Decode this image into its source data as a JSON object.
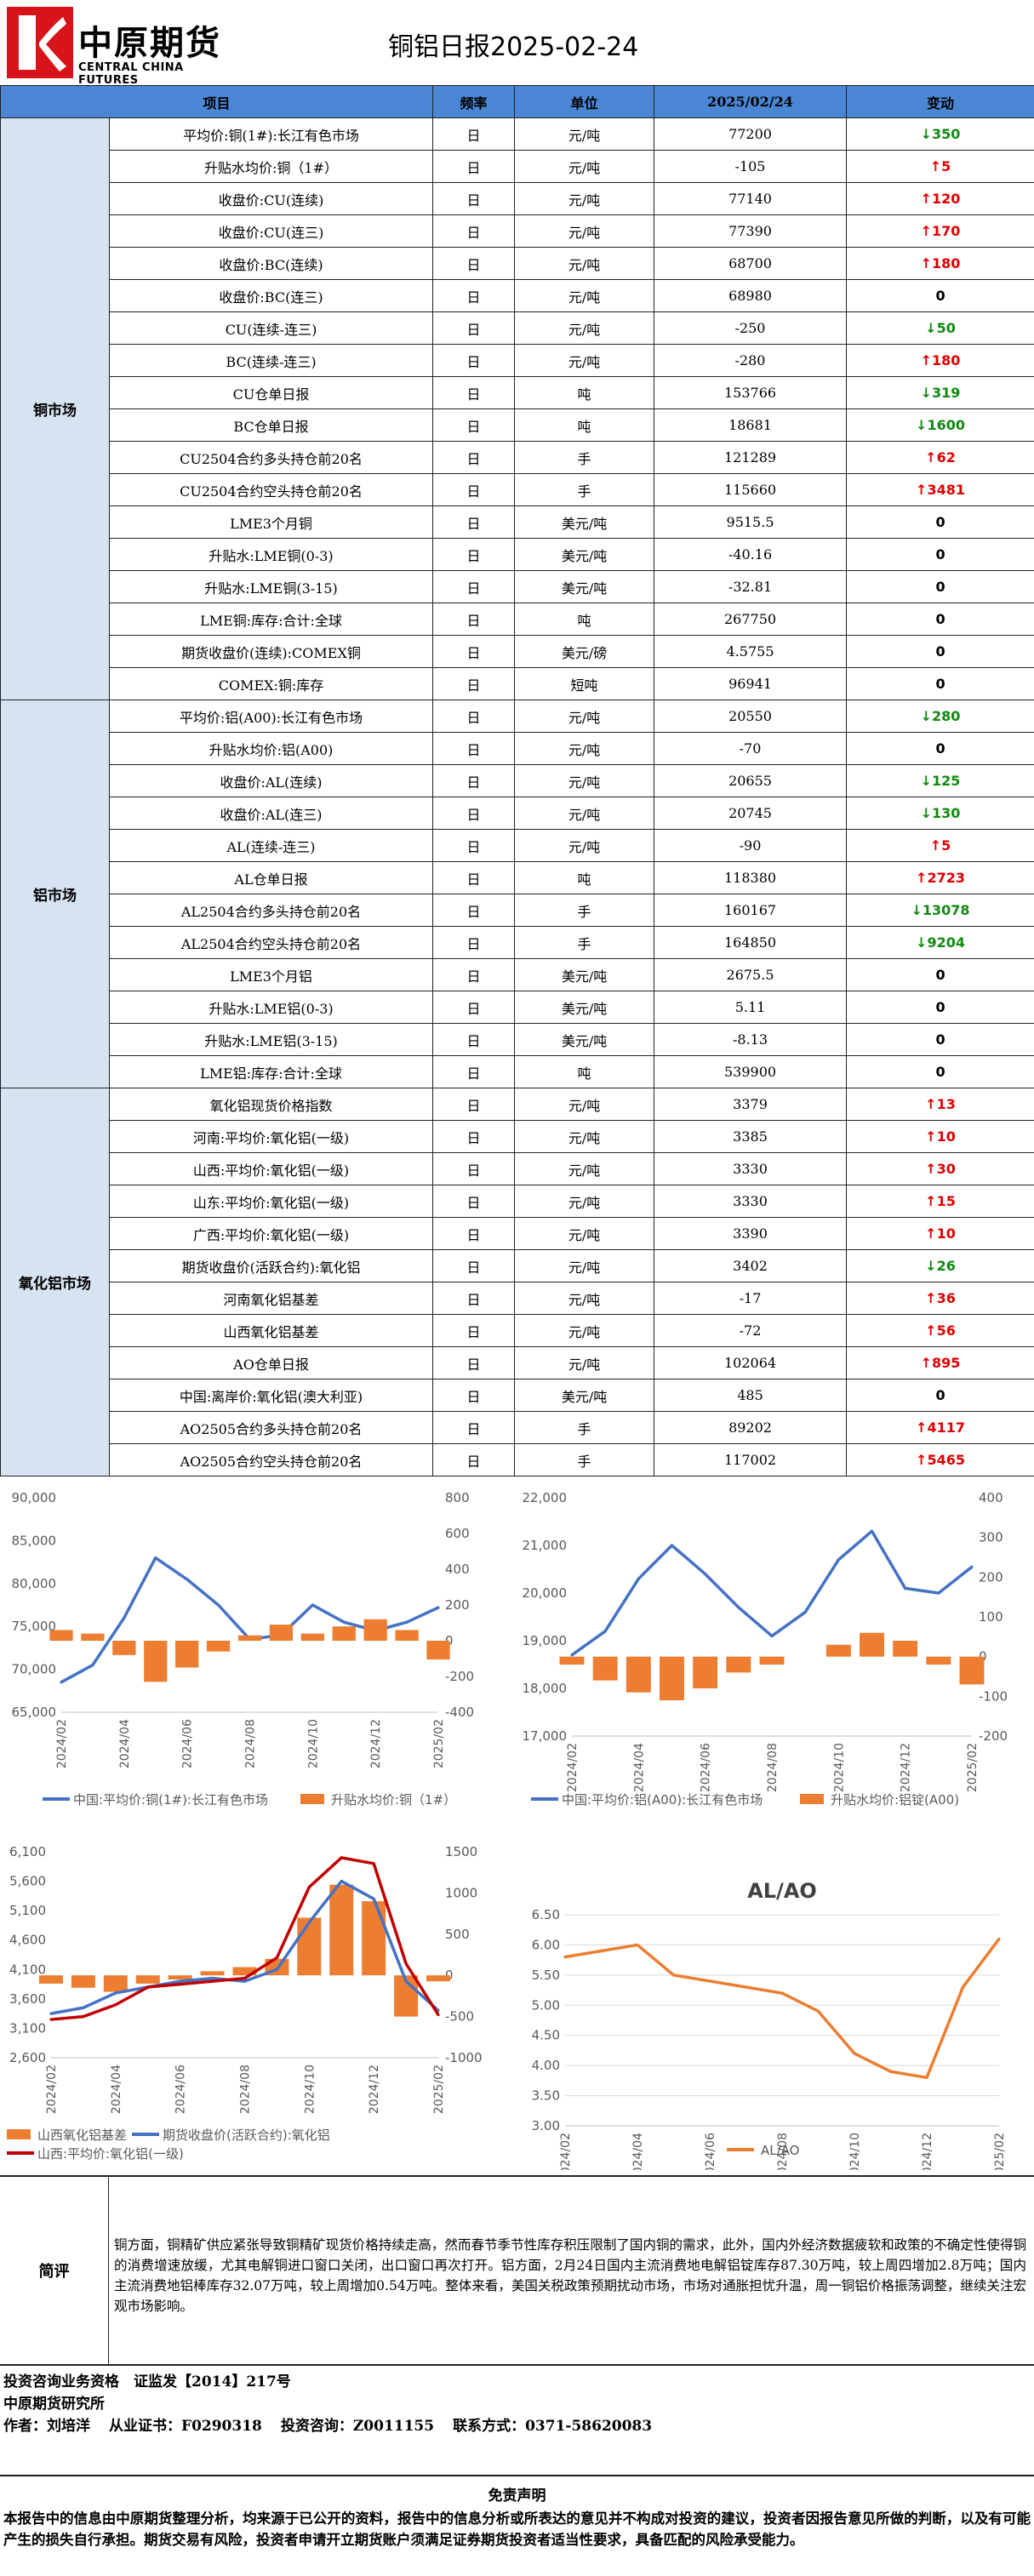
{
  "header": {
    "logo_cn": "中原期货",
    "logo_en": "CENTRAL CHINA FUTURES",
    "title": "铜铝日报2025-02-24"
  },
  "table": {
    "columns": [
      "项目",
      "频率",
      "单位",
      "2025/02/24",
      "变动"
    ],
    "groups": [
      {
        "name": "铜市场",
        "rows": [
          {
            "item": "平均价:铜(1#):长江有色市场",
            "freq": "日",
            "unit": "元/吨",
            "value": "77200",
            "change": "350",
            "dir": "down"
          },
          {
            "item": "升贴水均价:铜（1#）",
            "freq": "日",
            "unit": "元/吨",
            "value": "-105",
            "change": "5",
            "dir": "up"
          },
          {
            "item": "收盘价:CU(连续)",
            "freq": "日",
            "unit": "元/吨",
            "value": "77140",
            "change": "120",
            "dir": "up"
          },
          {
            "item": "收盘价:CU(连三)",
            "freq": "日",
            "unit": "元/吨",
            "value": "77390",
            "change": "170",
            "dir": "up"
          },
          {
            "item": "收盘价:BC(连续)",
            "freq": "日",
            "unit": "元/吨",
            "value": "68700",
            "change": "180",
            "dir": "up"
          },
          {
            "item": "收盘价:BC(连三)",
            "freq": "日",
            "unit": "元/吨",
            "value": "68980",
            "change": "0",
            "dir": "flat"
          },
          {
            "item": "CU(连续-连三)",
            "freq": "日",
            "unit": "元/吨",
            "value": "-250",
            "change": "50",
            "dir": "down"
          },
          {
            "item": "BC(连续-连三)",
            "freq": "日",
            "unit": "元/吨",
            "value": "-280",
            "change": "180",
            "dir": "up"
          },
          {
            "item": "CU仓单日报",
            "freq": "日",
            "unit": "吨",
            "value": "153766",
            "change": "319",
            "dir": "down"
          },
          {
            "item": "BC仓单日报",
            "freq": "日",
            "unit": "吨",
            "value": "18681",
            "change": "1600",
            "dir": "down"
          },
          {
            "item": "CU2504合约多头持仓前20名",
            "freq": "日",
            "unit": "手",
            "value": "121289",
            "change": "62",
            "dir": "up"
          },
          {
            "item": "CU2504合约空头持仓前20名",
            "freq": "日",
            "unit": "手",
            "value": "115660",
            "change": "3481",
            "dir": "up"
          },
          {
            "item": "LME3个月铜",
            "freq": "日",
            "unit": "美元/吨",
            "value": "9515.5",
            "change": "0",
            "dir": "flat"
          },
          {
            "item": "升贴水:LME铜(0-3)",
            "freq": "日",
            "unit": "美元/吨",
            "value": "-40.16",
            "change": "0",
            "dir": "flat"
          },
          {
            "item": "升贴水:LME铜(3-15)",
            "freq": "日",
            "unit": "美元/吨",
            "value": "-32.81",
            "change": "0",
            "dir": "flat"
          },
          {
            "item": "LME铜:库存:合计:全球",
            "freq": "日",
            "unit": "吨",
            "value": "267750",
            "change": "0",
            "dir": "flat"
          },
          {
            "item": "期货收盘价(连续):COMEX铜",
            "freq": "日",
            "unit": "美元/磅",
            "value": "4.5755",
            "change": "0",
            "dir": "flat"
          },
          {
            "item": "COMEX:铜:库存",
            "freq": "日",
            "unit": "短吨",
            "value": "96941",
            "change": "0",
            "dir": "flat"
          }
        ]
      },
      {
        "name": "铝市场",
        "rows": [
          {
            "item": "平均价:铝(A00):长江有色市场",
            "freq": "日",
            "unit": "元/吨",
            "value": "20550",
            "change": "280",
            "dir": "down"
          },
          {
            "item": "升贴水均价:铝(A00)",
            "freq": "日",
            "unit": "元/吨",
            "value": "-70",
            "change": "0",
            "dir": "flat"
          },
          {
            "item": "收盘价:AL(连续)",
            "freq": "日",
            "unit": "元/吨",
            "value": "20655",
            "change": "125",
            "dir": "down"
          },
          {
            "item": "收盘价:AL(连三)",
            "freq": "日",
            "unit": "元/吨",
            "value": "20745",
            "change": "130",
            "dir": "down"
          },
          {
            "item": "AL(连续-连三)",
            "freq": "日",
            "unit": "元/吨",
            "value": "-90",
            "change": "5",
            "dir": "up"
          },
          {
            "item": "AL仓单日报",
            "freq": "日",
            "unit": "吨",
            "value": "118380",
            "change": "2723",
            "dir": "up"
          },
          {
            "item": "AL2504合约多头持仓前20名",
            "freq": "日",
            "unit": "手",
            "value": "160167",
            "change": "13078",
            "dir": "down"
          },
          {
            "item": "AL2504合约空头持仓前20名",
            "freq": "日",
            "unit": "手",
            "value": "164850",
            "change": "9204",
            "dir": "down"
          },
          {
            "item": "LME3个月铝",
            "freq": "日",
            "unit": "美元/吨",
            "value": "2675.5",
            "change": "0",
            "dir": "flat"
          },
          {
            "item": "升贴水:LME铝(0-3)",
            "freq": "日",
            "unit": "美元/吨",
            "value": "5.11",
            "change": "0",
            "dir": "flat"
          },
          {
            "item": "升贴水:LME铝(3-15)",
            "freq": "日",
            "unit": "美元/吨",
            "value": "-8.13",
            "change": "0",
            "dir": "flat"
          },
          {
            "item": "LME铝:库存:合计:全球",
            "freq": "日",
            "unit": "吨",
            "value": "539900",
            "change": "0",
            "dir": "flat"
          }
        ]
      },
      {
        "name": "氧化铝市场",
        "rows": [
          {
            "item": "氧化铝现货价格指数",
            "freq": "日",
            "unit": "元/吨",
            "value": "3379",
            "change": "13",
            "dir": "up"
          },
          {
            "item": "河南:平均价:氧化铝(一级)",
            "freq": "日",
            "unit": "元/吨",
            "value": "3385",
            "change": "10",
            "dir": "up"
          },
          {
            "item": "山西:平均价:氧化铝(一级)",
            "freq": "日",
            "unit": "元/吨",
            "value": "3330",
            "change": "30",
            "dir": "up"
          },
          {
            "item": "山东:平均价:氧化铝(一级)",
            "freq": "日",
            "unit": "元/吨",
            "value": "3330",
            "change": "15",
            "dir": "up"
          },
          {
            "item": "广西:平均价:氧化铝(一级)",
            "freq": "日",
            "unit": "元/吨",
            "value": "3390",
            "change": "10",
            "dir": "up"
          },
          {
            "item": "期货收盘价(活跃合约):氧化铝",
            "freq": "日",
            "unit": "元/吨",
            "value": "3402",
            "change": "26",
            "dir": "down"
          },
          {
            "item": "河南氧化铝基差",
            "freq": "日",
            "unit": "元/吨",
            "value": "-17",
            "change": "36",
            "dir": "up"
          },
          {
            "item": "山西氧化铝基差",
            "freq": "日",
            "unit": "元/吨",
            "value": "-72",
            "change": "56",
            "dir": "up"
          },
          {
            "item": "AO仓单日报",
            "freq": "日",
            "unit": "元/吨",
            "value": "102064",
            "change": "895",
            "dir": "up"
          },
          {
            "item": "中国:离岸价:氧化铝(澳大利亚)",
            "freq": "日",
            "unit": "美元/吨",
            "value": "485",
            "change": "0",
            "dir": "flat"
          },
          {
            "item": "AO2505合约多头持仓前20名",
            "freq": "日",
            "unit": "手",
            "value": "89202",
            "change": "4117",
            "dir": "up"
          },
          {
            "item": "AO2505合约空头持仓前20名",
            "freq": "日",
            "unit": "手",
            "value": "117002",
            "change": "5465",
            "dir": "up"
          }
        ]
      }
    ]
  },
  "chart_data": [
    {
      "type": "line",
      "title": "",
      "x": [
        "2024/02",
        "2024/03",
        "2024/04",
        "2024/05",
        "2024/06",
        "2024/07",
        "2024/08",
        "2024/09",
        "2024/10",
        "2024/11",
        "2024/12",
        "2025/01",
        "2025/02"
      ],
      "x_ticks": [
        "2024/02",
        "2024/04",
        "2024/06",
        "2024/08",
        "2024/10",
        "2024/12",
        "2025/02"
      ],
      "series": [
        {
          "name": "中国:平均价:铜(1#):长江有色市场",
          "kind": "line",
          "axis": "left",
          "color": "#4472c4",
          "values": [
            68500,
            70500,
            76000,
            83000,
            80500,
            77500,
            73500,
            74000,
            77500,
            75500,
            74500,
            75500,
            77200
          ]
        },
        {
          "name": "升贴水均价:铜（1#）",
          "kind": "bar",
          "axis": "right",
          "color": "#ed7d31",
          "values": [
            60,
            40,
            -80,
            -230,
            -150,
            -60,
            30,
            90,
            40,
            80,
            120,
            60,
            -105
          ]
        }
      ],
      "ylim_left": [
        65000,
        90000
      ],
      "yticks_left": [
        "65,000",
        "70,000",
        "75,000",
        "80,000",
        "85,000",
        "90,000"
      ],
      "ylim_right": [
        -400,
        800
      ],
      "yticks_right": [
        "-400",
        "-200",
        "0",
        "200",
        "400",
        "600",
        "800"
      ]
    },
    {
      "type": "line",
      "title": "",
      "x": [
        "2024/02",
        "2024/03",
        "2024/04",
        "2024/05",
        "2024/06",
        "2024/07",
        "2024/08",
        "2024/09",
        "2024/10",
        "2024/11",
        "2024/12",
        "2025/01",
        "2025/02"
      ],
      "x_ticks": [
        "2024/02",
        "2024/04",
        "2024/06",
        "2024/08",
        "2024/10",
        "2024/12",
        "2025/02"
      ],
      "series": [
        {
          "name": "中国:平均价:铝(A00):长江有色市场",
          "kind": "line",
          "axis": "left",
          "color": "#4472c4",
          "values": [
            18700,
            19200,
            20300,
            21000,
            20400,
            19700,
            19100,
            19600,
            20700,
            21300,
            20100,
            20000,
            20550
          ]
        },
        {
          "name": "升贴水均价:铝锭(A00)",
          "kind": "bar",
          "axis": "right",
          "color": "#ed7d31",
          "values": [
            -20,
            -60,
            -90,
            -110,
            -80,
            -40,
            -20,
            0,
            30,
            60,
            40,
            -20,
            -70
          ]
        }
      ],
      "ylim_left": [
        17000,
        22000
      ],
      "yticks_left": [
        "17,000",
        "18,000",
        "19,000",
        "20,000",
        "21,000",
        "22,000"
      ],
      "ylim_right": [
        -200,
        400
      ],
      "yticks_right": [
        "-200",
        "-100",
        "0",
        "100",
        "200",
        "300",
        "400"
      ]
    },
    {
      "type": "line",
      "title": "",
      "x": [
        "2024/02",
        "2024/03",
        "2024/04",
        "2024/05",
        "2024/06",
        "2024/07",
        "2024/08",
        "2024/09",
        "2024/10",
        "2024/11",
        "2024/12",
        "2025/01",
        "2025/02"
      ],
      "x_ticks": [
        "2024/02",
        "2024/04",
        "2024/06",
        "2024/08",
        "2024/10",
        "2024/12",
        "2025/02"
      ],
      "series": [
        {
          "name": "山西氧化铝基差",
          "kind": "bar",
          "axis": "right",
          "color": "#ed7d31",
          "values": [
            -100,
            -150,
            -200,
            -100,
            -50,
            50,
            100,
            200,
            700,
            1100,
            900,
            -500,
            -72
          ]
        },
        {
          "name": "期货收盘价(活跃合约):氧化铝",
          "kind": "line",
          "axis": "left",
          "color": "#4472c4",
          "values": [
            3350,
            3450,
            3700,
            3800,
            3900,
            3950,
            3900,
            4100,
            4900,
            5600,
            5300,
            3900,
            3402
          ]
        },
        {
          "name": "山西:平均价:氧化铝(一级)",
          "kind": "line",
          "axis": "left",
          "color": "#c00000",
          "values": [
            3250,
            3300,
            3500,
            3800,
            3850,
            3900,
            3950,
            4300,
            5500,
            6000,
            5900,
            4200,
            3330
          ]
        }
      ],
      "ylim_left": [
        2600,
        6100
      ],
      "yticks_left": [
        "2,600",
        "3,100",
        "3,600",
        "4,100",
        "4,600",
        "5,100",
        "5,600",
        "6,100"
      ],
      "ylim_right": [
        -1000,
        1500
      ],
      "yticks_right": [
        "-1000",
        "-500",
        "0",
        "500",
        "1000",
        "1500"
      ]
    },
    {
      "type": "line",
      "title": "AL/AO",
      "x": [
        "2024/02",
        "2024/03",
        "2024/04",
        "2024/05",
        "2024/06",
        "2024/07",
        "2024/08",
        "2024/09",
        "2024/10",
        "2024/11",
        "2024/12",
        "2025/01",
        "2025/02"
      ],
      "x_ticks": [
        "2024/02",
        "2024/04",
        "2024/06",
        "2024/08",
        "2024/10",
        "2024/12",
        "2025/02"
      ],
      "series": [
        {
          "name": "AL/AO",
          "kind": "line",
          "axis": "left",
          "color": "#ed7d31",
          "values": [
            5.8,
            5.9,
            6.0,
            5.5,
            5.4,
            5.3,
            5.2,
            4.9,
            4.2,
            3.9,
            3.8,
            5.3,
            6.1
          ]
        }
      ],
      "ylim_left": [
        3.0,
        6.5
      ],
      "yticks_left": [
        "3.00",
        "3.50",
        "4.00",
        "4.50",
        "5.00",
        "5.50",
        "6.00",
        "6.50"
      ]
    }
  ],
  "comment": {
    "label": "简评",
    "text": "铜方面，铜精矿供应紧张导致铜精矿现货价格持续走高，然而春节季节性库存积压限制了国内铜的需求，此外，国内外经济数据疲软和政策的不确定性使得铜的消费增速放缓，尤其电解铜进口窗口关闭，出口窗口再次打开。铝方面，2月24日国内主流消费地电解铝锭库存87.30万吨，较上周四增加2.8万吨；国内主流消费地铝棒库存32.07万吨，较上周增加0.54万吨。整体来看，美国关税政策预期扰动市场，市场对通胀担忧升温，周一铜铝价格振荡调整，继续关注宏观市场影响。"
  },
  "info": {
    "line1": "投资咨询业务资格　证监发【2014】217号",
    "line2": "中原期货研究所",
    "author": "作者：刘培洋",
    "cert": "从业证书：F0290318",
    "consult": "投资咨询：Z0011155",
    "contact": "联系方式：0371-58620083"
  },
  "disclaimer": {
    "title": "免责声明",
    "text": "本报告中的信息由中原期货整理分析，均来源于已公开的资料，报告中的信息分析或所表达的意见并不构成对投资的建议，投资者因报告意见所做的判断，以及有可能产生的损失自行承担。期货交易有风险，投资者申请开立期货账户须满足证券期货投资者适当性要求，具备匹配的风险承受能力。"
  },
  "colors": {
    "up": "#e00000",
    "down": "#108a10",
    "header_bg": "#4a86d3",
    "category_bg": "#d6e3f1",
    "logo_red": "#d7141a"
  }
}
